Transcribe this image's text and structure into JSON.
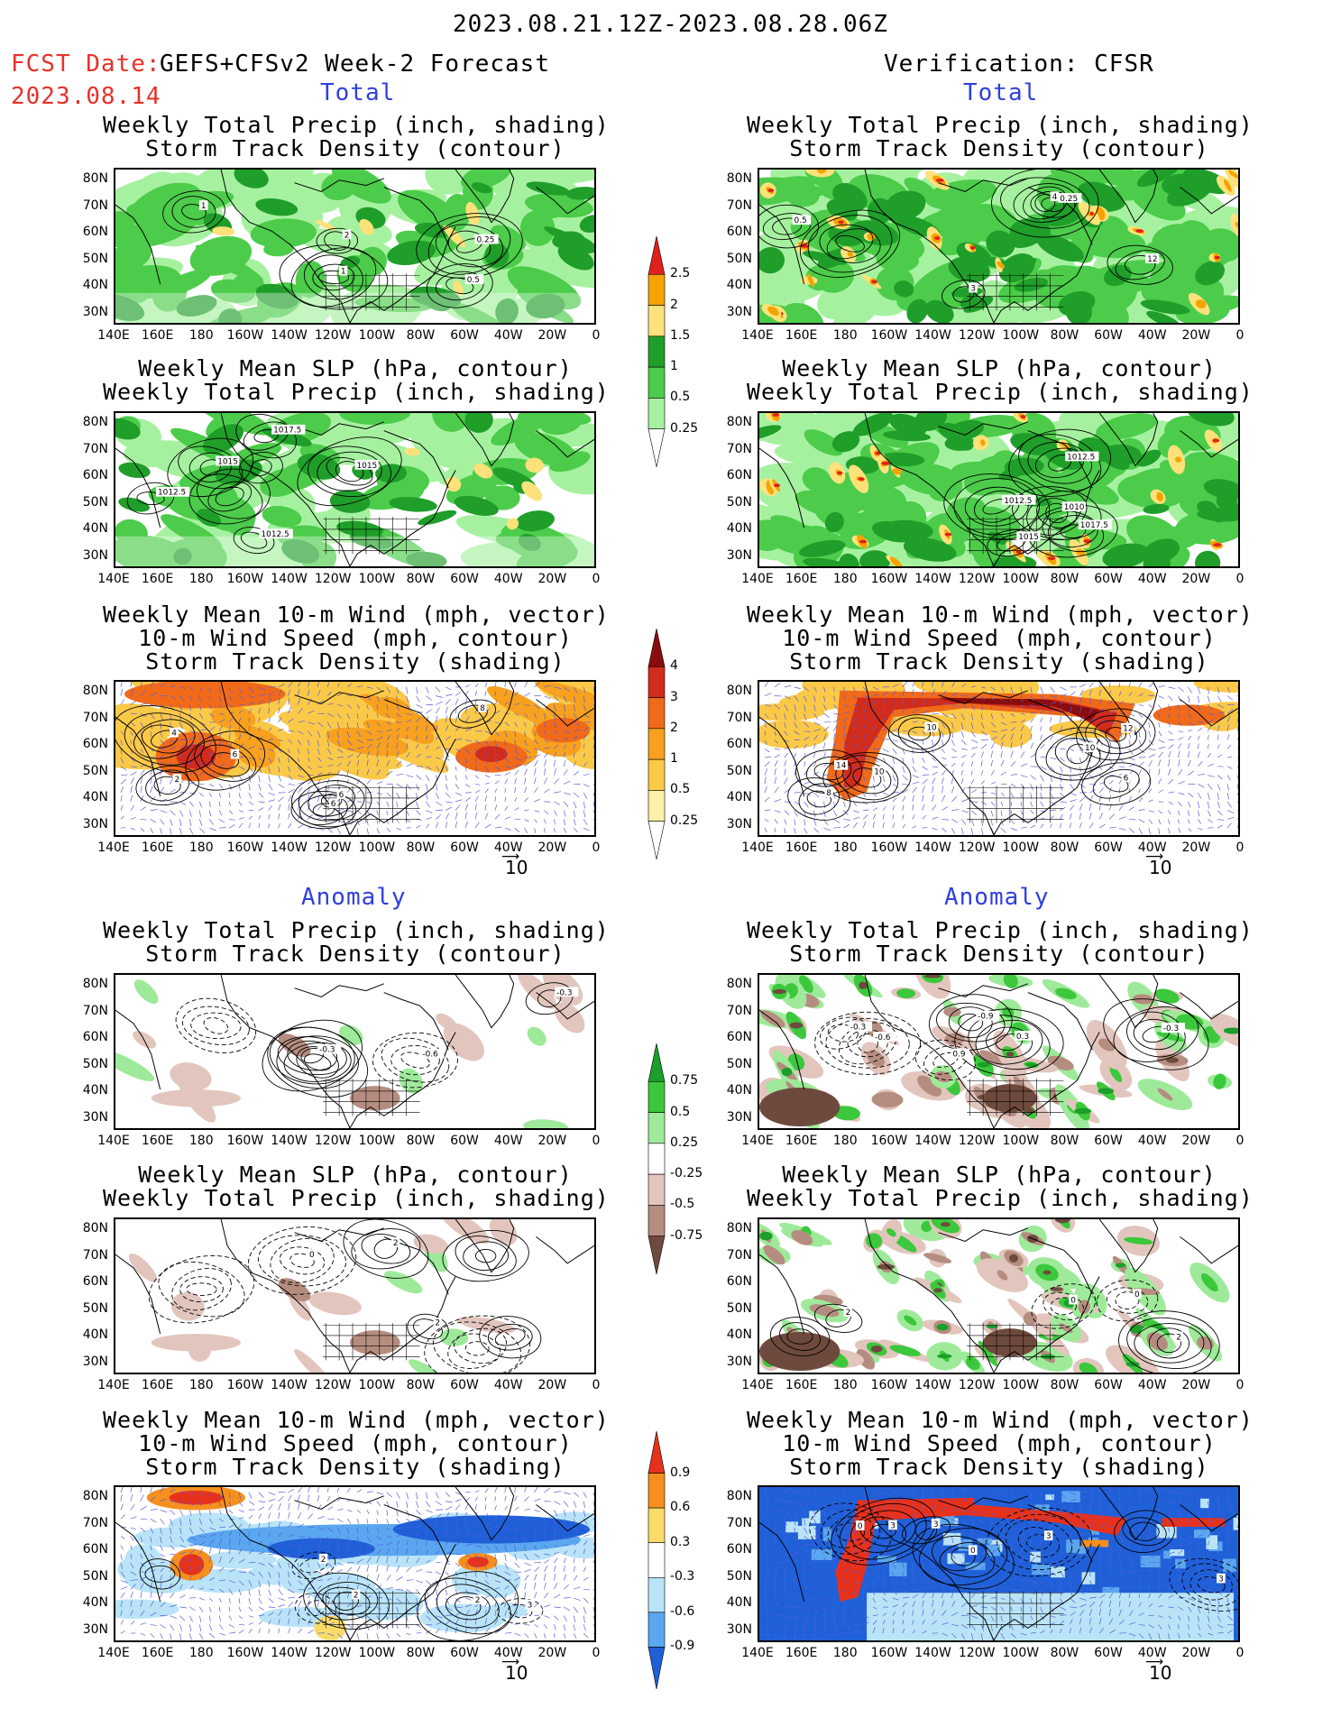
{
  "header": {
    "date_range": "2023.08.21.12Z-2023.08.28.06Z",
    "fcst_label": "FCST Date:",
    "fcst_model": "GEFS+CFSv2 Week-2 Forecast",
    "fcst_date": "2023.08.14",
    "verification": "Verification: CFSR"
  },
  "sections": {
    "total": "Total",
    "anomaly": "Anomaly"
  },
  "panel_titles": {
    "precip_storm": [
      "Weekly Total Precip (inch, shading)",
      "Storm Track Density (contour)"
    ],
    "slp_precip": [
      "Weekly Mean SLP (hPa, contour)",
      "Weekly Total Precip (inch, shading)"
    ],
    "wind": [
      "Weekly Mean 10-m Wind (mph, vector)",
      "10-m Wind Speed (mph, contour)",
      "Storm Track Density (shading)"
    ]
  },
  "axes": {
    "lat_labels": [
      "80N",
      "70N",
      "60N",
      "50N",
      "40N",
      "30N"
    ],
    "lon_labels": [
      "140E",
      "160E",
      "180",
      "160W",
      "140W",
      "120W",
      "100W",
      "80W",
      "60W",
      "40W",
      "20W",
      "0"
    ]
  },
  "vector_ref": "10",
  "colorbars": {
    "precip_total": {
      "labels": [
        "2.5",
        "2",
        "1.5",
        "1",
        "0.5",
        "0.25"
      ],
      "colors": [
        "#e0201c",
        "#f5a300",
        "#fde17a",
        "#1f9e2a",
        "#4ccc4a",
        "#a6f1a0",
        "#ffffff"
      ]
    },
    "storm_total": {
      "labels": [
        "4",
        "3",
        "2",
        "1",
        "0.5",
        "0.25"
      ],
      "colors": [
        "#8a0d0d",
        "#d12b1c",
        "#f06a1a",
        "#f7a11e",
        "#fbc948",
        "#fdf0a8",
        "#ffffff"
      ]
    },
    "precip_anom": {
      "labels": [
        "0.75",
        "0.5",
        "0.25",
        "-0.25",
        "-0.5",
        "-0.75"
      ],
      "colors": [
        "#1b9e2a",
        "#3cc83c",
        "#9eea9a",
        "#ffffff",
        "#e2c6bd",
        "#b58d80",
        "#6e4a3e"
      ]
    },
    "storm_anom": {
      "labels": [
        "0.9",
        "0.6",
        "0.3",
        "-0.3",
        "-0.6",
        "-0.9"
      ],
      "colors": [
        "#e6321d",
        "#f5901e",
        "#fbdc6a",
        "#ffffff",
        "#b9e4f7",
        "#5aa7ef",
        "#1f60d8"
      ]
    }
  },
  "panels": [
    {
      "id": "L1",
      "contour_labels": [
        "0.5",
        "1",
        "0.25",
        "2",
        "1"
      ]
    },
    {
      "id": "R1",
      "contour_labels": [
        "12",
        "0.5",
        "3",
        "4",
        "0.25"
      ]
    },
    {
      "id": "L2",
      "contour_labels": [
        "1012.5",
        "1015",
        "1012.5",
        "1015",
        "1017.5"
      ]
    },
    {
      "id": "R2",
      "contour_labels": [
        "1012.5",
        "1015",
        "1010",
        "1012.5",
        "1017.5"
      ]
    },
    {
      "id": "L3",
      "contour_labels": [
        "2",
        "4",
        "6",
        "6",
        "8",
        "6"
      ]
    },
    {
      "id": "R3",
      "contour_labels": [
        "8",
        "6",
        "10",
        "12",
        "14",
        "10",
        "10"
      ]
    },
    {
      "id": "L4",
      "contour_labels": [
        "-0.3",
        "-0.6",
        "-0.3"
      ]
    },
    {
      "id": "R4",
      "contour_labels": [
        "-0.6",
        "0.9",
        "-0.9",
        "0.9",
        "0.3",
        "-0.6",
        "-0.3",
        "-0.3"
      ]
    },
    {
      "id": "L5",
      "contour_labels": [
        "2",
        "0",
        "2"
      ]
    },
    {
      "id": "R5",
      "contour_labels": [
        "2",
        "0",
        "2",
        "0"
      ]
    },
    {
      "id": "L6",
      "contour_labels": [
        "2",
        "3",
        "2",
        "2"
      ]
    },
    {
      "id": "R6",
      "contour_labels": [
        "3",
        "3",
        "0",
        "0",
        "3",
        "3"
      ]
    }
  ]
}
